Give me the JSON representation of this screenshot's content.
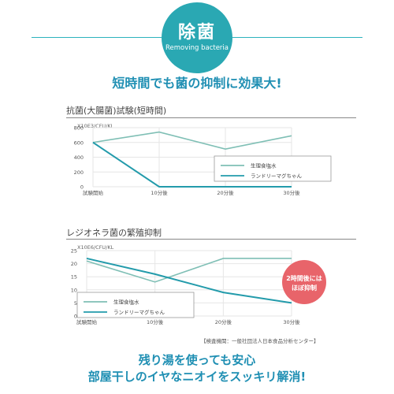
{
  "header": {
    "badge_title": "除菌",
    "badge_subtitle": "Removing bacteria",
    "headline": "短時間でも菌の抑制に効果大!"
  },
  "colors": {
    "saline": "#7fbfb5",
    "product": "#239bab",
    "badge": "#2aa8b3",
    "callout": "#e8646a"
  },
  "chart_data": [
    {
      "type": "line",
      "title": "抗菌(大腸菌)試験(短時間)",
      "unit_label": "X10E3/CFU/KL",
      "categories": [
        "試験開始",
        "10分後",
        "20分後",
        "30分後"
      ],
      "yticks": [
        "800",
        "600",
        "400",
        "200",
        "0"
      ],
      "ylim": [
        0,
        800
      ],
      "series": [
        {
          "name": "生理食塩水",
          "values": [
            600,
            740,
            510,
            690
          ],
          "color": "#7fbfb5"
        },
        {
          "name": "ランドリーマグちゃん",
          "values": [
            600,
            0,
            0,
            0
          ],
          "color": "#239bab"
        }
      ],
      "legend": "right"
    },
    {
      "type": "line",
      "title": "レジオネラ菌の繁殖抑制",
      "unit_label": "X10E6/CFU/KL",
      "categories": [
        "試験開始",
        "10分後",
        "20分後",
        "30分後"
      ],
      "yticks": [
        "25",
        "20",
        "15",
        "10",
        "5",
        "0"
      ],
      "ylim": [
        0,
        25
      ],
      "series": [
        {
          "name": "生理食塩水",
          "values": [
            21,
            13,
            22,
            22
          ],
          "color": "#7fbfb5"
        },
        {
          "name": "ランドリーマグちゃん",
          "values": [
            22,
            16,
            9,
            5
          ],
          "color": "#239bab"
        }
      ],
      "legend": "lower-left",
      "annotation": "2時間後には ほぼ抑制"
    }
  ],
  "source_note": "【検査機関：一般社団法人日本食品分析センター】",
  "footer": {
    "line1": "残り湯を使っても安心",
    "line2": "部屋干しのイヤなニオイをスッキリ解消!"
  }
}
